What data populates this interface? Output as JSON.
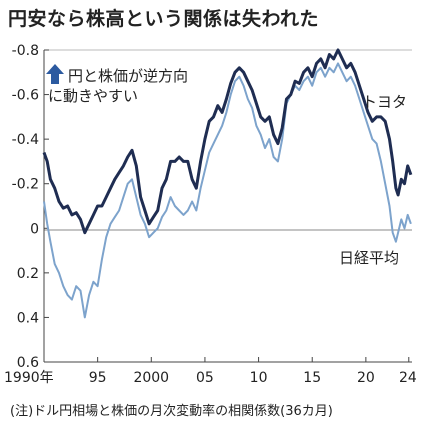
{
  "title": "円安なら株高という関係は失われた",
  "note": "(注)ドル円相場と株価の月次変動率の相関係数(36カ月)",
  "annotation_line1": "円と株価が逆方向",
  "annotation_line2": "に動きやすい",
  "chart_data": {
    "type": "line",
    "title": "円安なら株高という関係は失われた",
    "xlabel": "",
    "ylabel": "",
    "x_ticks": [
      "1990年",
      "95",
      "2000",
      "05",
      "10",
      "15",
      "20",
      "24"
    ],
    "y_ticks": [
      "-0.8",
      "-0.6",
      "-0.4",
      "-0.2",
      "0",
      "0.2",
      "0.4",
      "0.6"
    ],
    "xlim": [
      1990,
      2024.3
    ],
    "ylim": [
      -0.8,
      0.6
    ],
    "y_inverted": true,
    "grid": false,
    "colors": {
      "toyota": "#1f2d52",
      "nikkei": "#7da3cc",
      "arrow": "#2c5aa0"
    },
    "series": [
      {
        "name": "トヨタ",
        "color": "#1f2d52",
        "points": [
          [
            1990.0,
            -0.34
          ],
          [
            1990.3,
            -0.3
          ],
          [
            1990.6,
            -0.22
          ],
          [
            1991.0,
            -0.18
          ],
          [
            1991.4,
            -0.12
          ],
          [
            1991.8,
            -0.09
          ],
          [
            1992.2,
            -0.1
          ],
          [
            1992.6,
            -0.06
          ],
          [
            1993.0,
            -0.07
          ],
          [
            1993.4,
            -0.04
          ],
          [
            1993.8,
            0.02
          ],
          [
            1994.2,
            -0.02
          ],
          [
            1994.6,
            -0.06
          ],
          [
            1995.0,
            -0.1
          ],
          [
            1995.4,
            -0.1
          ],
          [
            1995.8,
            -0.14
          ],
          [
            1996.2,
            -0.18
          ],
          [
            1996.6,
            -0.22
          ],
          [
            1997.0,
            -0.25
          ],
          [
            1997.4,
            -0.28
          ],
          [
            1997.8,
            -0.32
          ],
          [
            1998.2,
            -0.35
          ],
          [
            1998.6,
            -0.28
          ],
          [
            1999.0,
            -0.14
          ],
          [
            1999.4,
            -0.08
          ],
          [
            1999.8,
            -0.02
          ],
          [
            2000.2,
            -0.05
          ],
          [
            2000.6,
            -0.08
          ],
          [
            2001.0,
            -0.18
          ],
          [
            2001.4,
            -0.22
          ],
          [
            2001.8,
            -0.3
          ],
          [
            2002.2,
            -0.3
          ],
          [
            2002.6,
            -0.32
          ],
          [
            2003.0,
            -0.3
          ],
          [
            2003.4,
            -0.3
          ],
          [
            2003.8,
            -0.22
          ],
          [
            2004.2,
            -0.18
          ],
          [
            2004.6,
            -0.3
          ],
          [
            2005.0,
            -0.4
          ],
          [
            2005.4,
            -0.48
          ],
          [
            2005.8,
            -0.5
          ],
          [
            2006.2,
            -0.55
          ],
          [
            2006.6,
            -0.52
          ],
          [
            2007.0,
            -0.58
          ],
          [
            2007.4,
            -0.65
          ],
          [
            2007.8,
            -0.7
          ],
          [
            2008.2,
            -0.72
          ],
          [
            2008.6,
            -0.7
          ],
          [
            2009.0,
            -0.66
          ],
          [
            2009.4,
            -0.62
          ],
          [
            2009.8,
            -0.56
          ],
          [
            2010.2,
            -0.5
          ],
          [
            2010.6,
            -0.48
          ],
          [
            2011.0,
            -0.5
          ],
          [
            2011.4,
            -0.42
          ],
          [
            2011.8,
            -0.38
          ],
          [
            2012.2,
            -0.45
          ],
          [
            2012.6,
            -0.58
          ],
          [
            2013.0,
            -0.6
          ],
          [
            2013.4,
            -0.66
          ],
          [
            2013.8,
            -0.65
          ],
          [
            2014.2,
            -0.7
          ],
          [
            2014.6,
            -0.72
          ],
          [
            2015.0,
            -0.68
          ],
          [
            2015.4,
            -0.74
          ],
          [
            2015.8,
            -0.76
          ],
          [
            2016.2,
            -0.72
          ],
          [
            2016.6,
            -0.78
          ],
          [
            2017.0,
            -0.76
          ],
          [
            2017.4,
            -0.8
          ],
          [
            2017.8,
            -0.76
          ],
          [
            2018.2,
            -0.72
          ],
          [
            2018.6,
            -0.74
          ],
          [
            2019.0,
            -0.7
          ],
          [
            2019.4,
            -0.64
          ],
          [
            2019.8,
            -0.58
          ],
          [
            2020.2,
            -0.52
          ],
          [
            2020.6,
            -0.48
          ],
          [
            2021.0,
            -0.5
          ],
          [
            2021.4,
            -0.5
          ],
          [
            2021.8,
            -0.48
          ],
          [
            2022.2,
            -0.4
          ],
          [
            2022.5,
            -0.3
          ],
          [
            2022.8,
            -0.18
          ],
          [
            2023.0,
            -0.15
          ],
          [
            2023.3,
            -0.22
          ],
          [
            2023.6,
            -0.2
          ],
          [
            2023.9,
            -0.28
          ],
          [
            2024.2,
            -0.24
          ]
        ]
      },
      {
        "name": "日経平均",
        "color": "#7da3cc",
        "points": [
          [
            1990.0,
            -0.12
          ],
          [
            1990.3,
            -0.02
          ],
          [
            1990.6,
            0.06
          ],
          [
            1991.0,
            0.16
          ],
          [
            1991.4,
            0.2
          ],
          [
            1991.8,
            0.26
          ],
          [
            1992.2,
            0.3
          ],
          [
            1992.6,
            0.32
          ],
          [
            1993.0,
            0.26
          ],
          [
            1993.4,
            0.28
          ],
          [
            1993.8,
            0.4
          ],
          [
            1994.2,
            0.3
          ],
          [
            1994.6,
            0.24
          ],
          [
            1995.0,
            0.26
          ],
          [
            1995.4,
            0.14
          ],
          [
            1995.8,
            0.04
          ],
          [
            1996.2,
            -0.02
          ],
          [
            1996.6,
            -0.05
          ],
          [
            1997.0,
            -0.08
          ],
          [
            1997.4,
            -0.14
          ],
          [
            1997.8,
            -0.2
          ],
          [
            1998.2,
            -0.22
          ],
          [
            1998.6,
            -0.14
          ],
          [
            1999.0,
            -0.06
          ],
          [
            1999.4,
            -0.02
          ],
          [
            1999.8,
            0.04
          ],
          [
            2000.2,
            0.02
          ],
          [
            2000.6,
            0.0
          ],
          [
            2001.0,
            -0.05
          ],
          [
            2001.4,
            -0.08
          ],
          [
            2001.8,
            -0.14
          ],
          [
            2002.2,
            -0.1
          ],
          [
            2002.6,
            -0.08
          ],
          [
            2003.0,
            -0.06
          ],
          [
            2003.4,
            -0.08
          ],
          [
            2003.8,
            -0.12
          ],
          [
            2004.2,
            -0.08
          ],
          [
            2004.6,
            -0.18
          ],
          [
            2005.0,
            -0.26
          ],
          [
            2005.4,
            -0.34
          ],
          [
            2005.8,
            -0.38
          ],
          [
            2006.2,
            -0.42
          ],
          [
            2006.6,
            -0.46
          ],
          [
            2007.0,
            -0.52
          ],
          [
            2007.4,
            -0.6
          ],
          [
            2007.8,
            -0.66
          ],
          [
            2008.2,
            -0.68
          ],
          [
            2008.6,
            -0.64
          ],
          [
            2009.0,
            -0.58
          ],
          [
            2009.4,
            -0.54
          ],
          [
            2009.8,
            -0.46
          ],
          [
            2010.2,
            -0.42
          ],
          [
            2010.6,
            -0.36
          ],
          [
            2011.0,
            -0.4
          ],
          [
            2011.4,
            -0.32
          ],
          [
            2011.8,
            -0.3
          ],
          [
            2012.2,
            -0.4
          ],
          [
            2012.6,
            -0.56
          ],
          [
            2013.0,
            -0.6
          ],
          [
            2013.4,
            -0.64
          ],
          [
            2013.8,
            -0.62
          ],
          [
            2014.2,
            -0.66
          ],
          [
            2014.6,
            -0.68
          ],
          [
            2015.0,
            -0.64
          ],
          [
            2015.4,
            -0.7
          ],
          [
            2015.8,
            -0.72
          ],
          [
            2016.2,
            -0.68
          ],
          [
            2016.6,
            -0.72
          ],
          [
            2017.0,
            -0.7
          ],
          [
            2017.4,
            -0.74
          ],
          [
            2017.8,
            -0.7
          ],
          [
            2018.2,
            -0.66
          ],
          [
            2018.6,
            -0.68
          ],
          [
            2019.0,
            -0.64
          ],
          [
            2019.4,
            -0.58
          ],
          [
            2019.8,
            -0.52
          ],
          [
            2020.2,
            -0.46
          ],
          [
            2020.6,
            -0.4
          ],
          [
            2021.0,
            -0.38
          ],
          [
            2021.4,
            -0.3
          ],
          [
            2021.8,
            -0.2
          ],
          [
            2022.2,
            -0.1
          ],
          [
            2022.5,
            0.02
          ],
          [
            2022.8,
            0.06
          ],
          [
            2023.0,
            0.02
          ],
          [
            2023.3,
            -0.04
          ],
          [
            2023.6,
            0.0
          ],
          [
            2023.9,
            -0.06
          ],
          [
            2024.2,
            -0.02
          ]
        ]
      }
    ],
    "annotations": [
      "円と株価が逆方向",
      "に動きやすい"
    ],
    "series_labels": [
      "トヨタ",
      "日経平均"
    ]
  }
}
